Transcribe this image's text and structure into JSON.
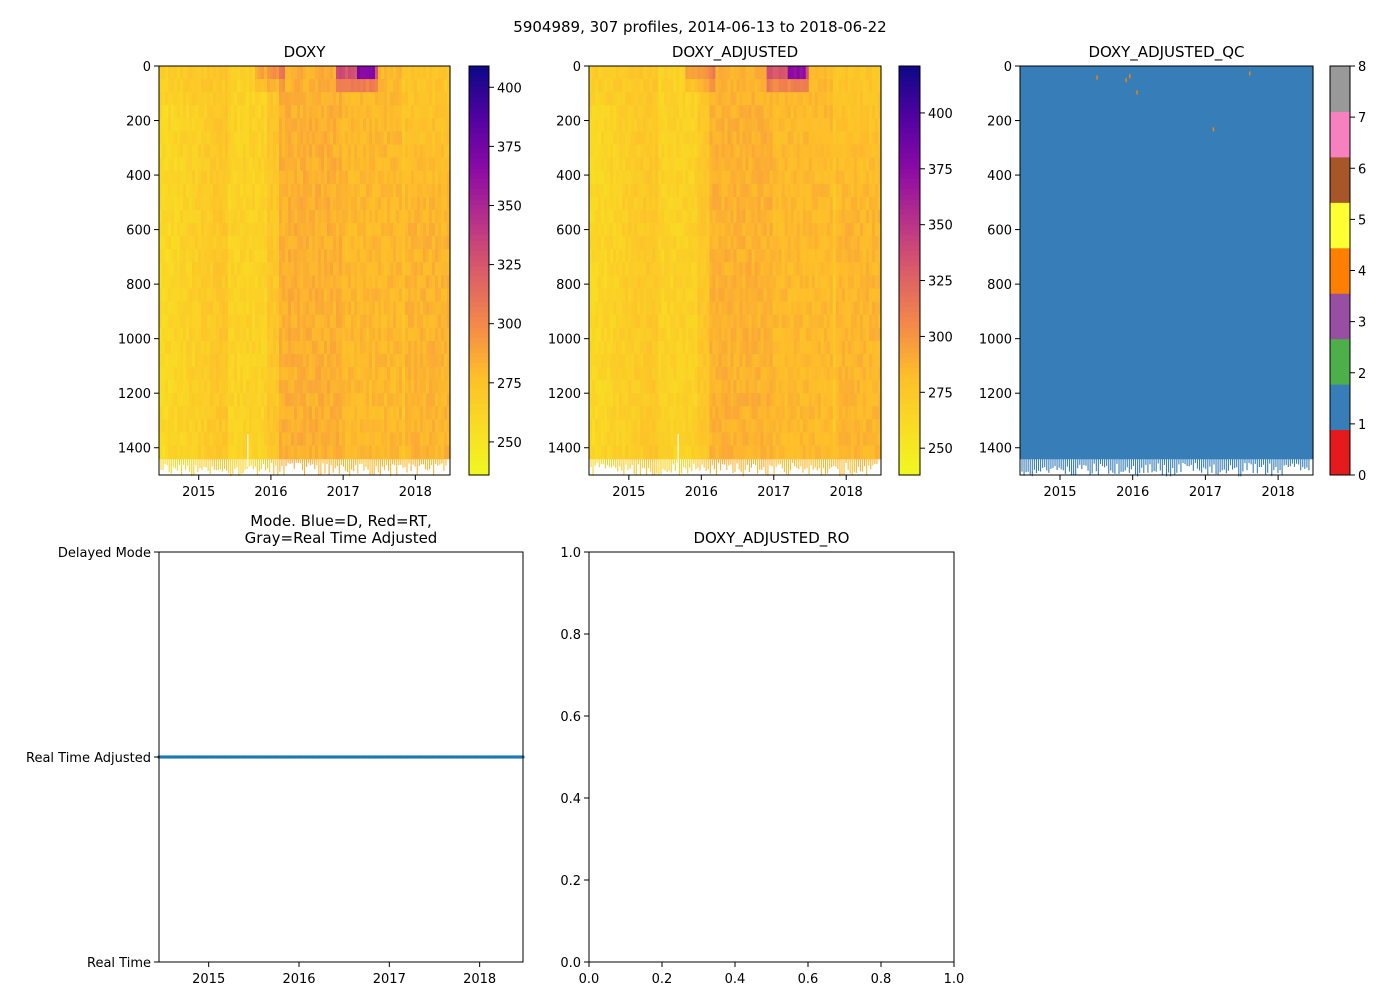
{
  "figure": {
    "suptitle": "5904989, 307 profiles, 2014-06-13 to 2018-06-22"
  },
  "chart_data": [
    {
      "id": "doxy",
      "type": "heatmap",
      "title": "DOXY",
      "x_ticks": [
        "2015",
        "2016",
        "2017",
        "2018"
      ],
      "x_tick_values": [
        2015,
        2016,
        2017,
        2018
      ],
      "xlim": [
        2014.45,
        2018.48
      ],
      "y_ticks": [
        "0",
        "200",
        "400",
        "600",
        "800",
        "1000",
        "1200",
        "1400"
      ],
      "y_tick_values": [
        0,
        200,
        400,
        600,
        800,
        1000,
        1200,
        1400
      ],
      "ylim": [
        1500,
        0
      ],
      "colorbar": {
        "colormap": "plasma_r",
        "ticks": [
          "250",
          "275",
          "300",
          "325",
          "350",
          "375",
          "400"
        ],
        "tick_values": [
          250,
          275,
          300,
          325,
          350,
          375,
          400
        ],
        "range": [
          236,
          409
        ]
      },
      "dominant_value_range": [
        255,
        300
      ],
      "high_value_feature": "Values near 400 close to the surface around early 2017"
    },
    {
      "id": "doxy-adjusted",
      "type": "heatmap",
      "title": "DOXY_ADJUSTED",
      "x_ticks": [
        "2015",
        "2016",
        "2017",
        "2018"
      ],
      "x_tick_values": [
        2015,
        2016,
        2017,
        2018
      ],
      "xlim": [
        2014.45,
        2018.48
      ],
      "y_ticks": [
        "0",
        "200",
        "400",
        "600",
        "800",
        "1000",
        "1200",
        "1400"
      ],
      "y_tick_values": [
        0,
        200,
        400,
        600,
        800,
        1000,
        1200,
        1400
      ],
      "ylim": [
        1500,
        0
      ],
      "colorbar": {
        "colormap": "plasma_r",
        "ticks": [
          "250",
          "275",
          "300",
          "325",
          "350",
          "375",
          "400"
        ],
        "tick_values": [
          250,
          275,
          300,
          325,
          350,
          375,
          400
        ],
        "range": [
          238,
          421
        ]
      },
      "dominant_value_range": [
        260,
        305
      ],
      "high_value_feature": "Values near 410 close to the surface around early 2017"
    },
    {
      "id": "doxy-adjusted-qc",
      "type": "heatmap",
      "title": "DOXY_ADJUSTED_QC",
      "x_ticks": [
        "2015",
        "2016",
        "2017",
        "2018"
      ],
      "x_tick_values": [
        2015,
        2016,
        2017,
        2018
      ],
      "xlim": [
        2014.45,
        2018.48
      ],
      "y_ticks": [
        "0",
        "200",
        "400",
        "600",
        "800",
        "1000",
        "1200",
        "1400"
      ],
      "y_tick_values": [
        0,
        200,
        400,
        600,
        800,
        1000,
        1200,
        1400
      ],
      "ylim": [
        1500,
        0
      ],
      "colorbar": {
        "colormap": "categorical",
        "ticks": [
          "0",
          "1",
          "2",
          "3",
          "4",
          "5",
          "6",
          "7",
          "8"
        ],
        "tick_values": [
          0,
          1,
          2,
          3,
          4,
          5,
          6,
          7,
          8
        ],
        "range": [
          0,
          8
        ],
        "colors": [
          "#e41a1c",
          "#377eb8",
          "#4daf4a",
          "#984ea3",
          "#ff7f00",
          "#ffff33",
          "#a65628",
          "#f781bf",
          "#999999"
        ]
      },
      "dominant_flag": 1,
      "rare_flag": 4
    },
    {
      "id": "mode",
      "type": "scatter",
      "title": "Mode. Blue=D, Red=RT,\nGray=Real Time Adjusted",
      "x_ticks": [
        "2015",
        "2016",
        "2017",
        "2018"
      ],
      "x_tick_values": [
        2015,
        2016,
        2017,
        2018
      ],
      "xlim": [
        2014.45,
        2018.48
      ],
      "y_ticks": [
        "Real Time",
        "Real Time Adjusted",
        "Delayed Mode"
      ],
      "y_tick_values": [
        0,
        1,
        2
      ],
      "ylim": [
        0,
        2
      ],
      "series": [
        {
          "name": "Real Time Adjusted",
          "color": "#1f77b4",
          "y": 1,
          "x_start": 2014.45,
          "x_end": 2018.48,
          "count": 307
        }
      ]
    },
    {
      "id": "doxy-adjusted-ro",
      "type": "scatter",
      "title": "DOXY_ADJUSTED_RO",
      "x_ticks": [
        "0.0",
        "0.2",
        "0.4",
        "0.6",
        "0.8",
        "1.0"
      ],
      "x_tick_values": [
        0,
        0.2,
        0.4,
        0.6,
        0.8,
        1.0
      ],
      "xlim": [
        0,
        1
      ],
      "y_ticks": [
        "0.0",
        "0.2",
        "0.4",
        "0.6",
        "0.8",
        "1.0"
      ],
      "y_tick_values": [
        0,
        0.2,
        0.4,
        0.6,
        0.8,
        1.0
      ],
      "ylim": [
        0,
        1
      ],
      "series": []
    }
  ]
}
